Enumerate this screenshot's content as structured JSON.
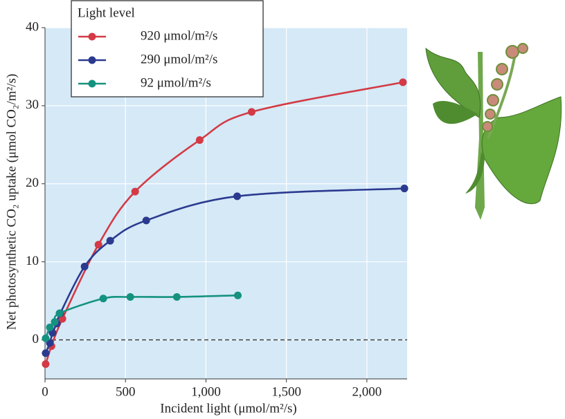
{
  "chart_data": {
    "type": "line",
    "x_label": "Incident light (μmol/m²/s)",
    "y_label": "Net photosynthetic CO₂ uptake (μmol CO₂/m²/s)",
    "legend_title": "Light level",
    "xlim": [
      0,
      2250
    ],
    "ylim": [
      -5,
      40
    ],
    "xticks": [
      0,
      500,
      {
        "value": 1000,
        "label": "1,000"
      },
      {
        "value": 1500,
        "label": "1,500"
      },
      {
        "value": 2000,
        "label": "2,000"
      }
    ],
    "yticks": [
      0,
      10,
      20,
      30,
      40
    ],
    "grid": true,
    "background": "#d5e9f7",
    "reference_line": 0,
    "series": [
      {
        "name": "920 μmol/m²/s",
        "color": "#d33a45",
        "x": [
          4,
          40,
          108,
          332,
          560,
          961,
          1284,
          2224
        ],
        "values": [
          -3.1,
          -0.8,
          2.7,
          12.2,
          19.0,
          25.6,
          29.2,
          33.0
        ]
      },
      {
        "name": "290 μmol/m²/s",
        "color": "#2b3a8f",
        "x": [
          4,
          30,
          47,
          73,
          95,
          246,
          405,
          629,
          1194,
          2233
        ],
        "values": [
          -1.7,
          -0.4,
          0.9,
          2.1,
          3.4,
          9.4,
          12.7,
          15.3,
          18.4,
          19.4
        ]
      },
      {
        "name": "92 μmol/m²/s",
        "color": "#14927f",
        "x": [
          4,
          30,
          60,
          90,
          362,
          530,
          819,
          1198
        ],
        "values": [
          0.2,
          1.6,
          2.3,
          3.4,
          5.3,
          5.5,
          5.5,
          5.7
        ]
      }
    ]
  }
}
